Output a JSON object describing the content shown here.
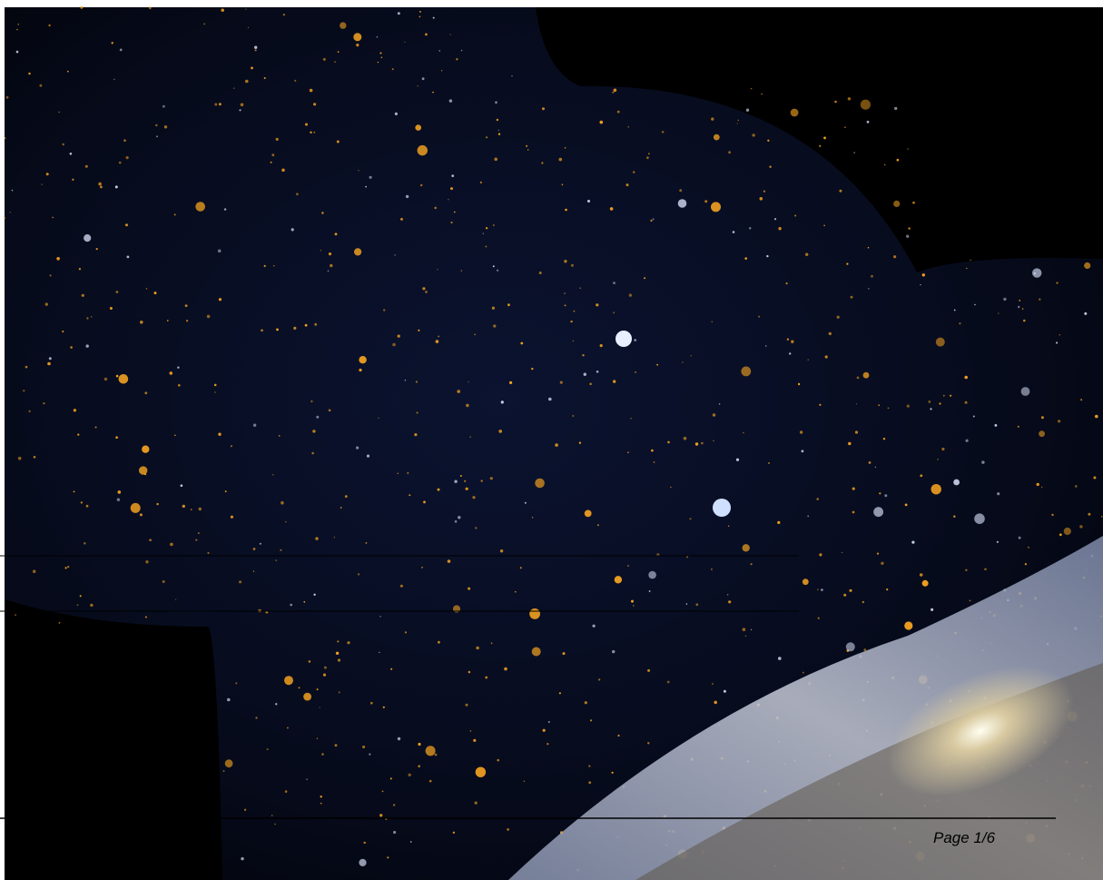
{
  "footer": {
    "page_number": "Page 1/6"
  }
}
